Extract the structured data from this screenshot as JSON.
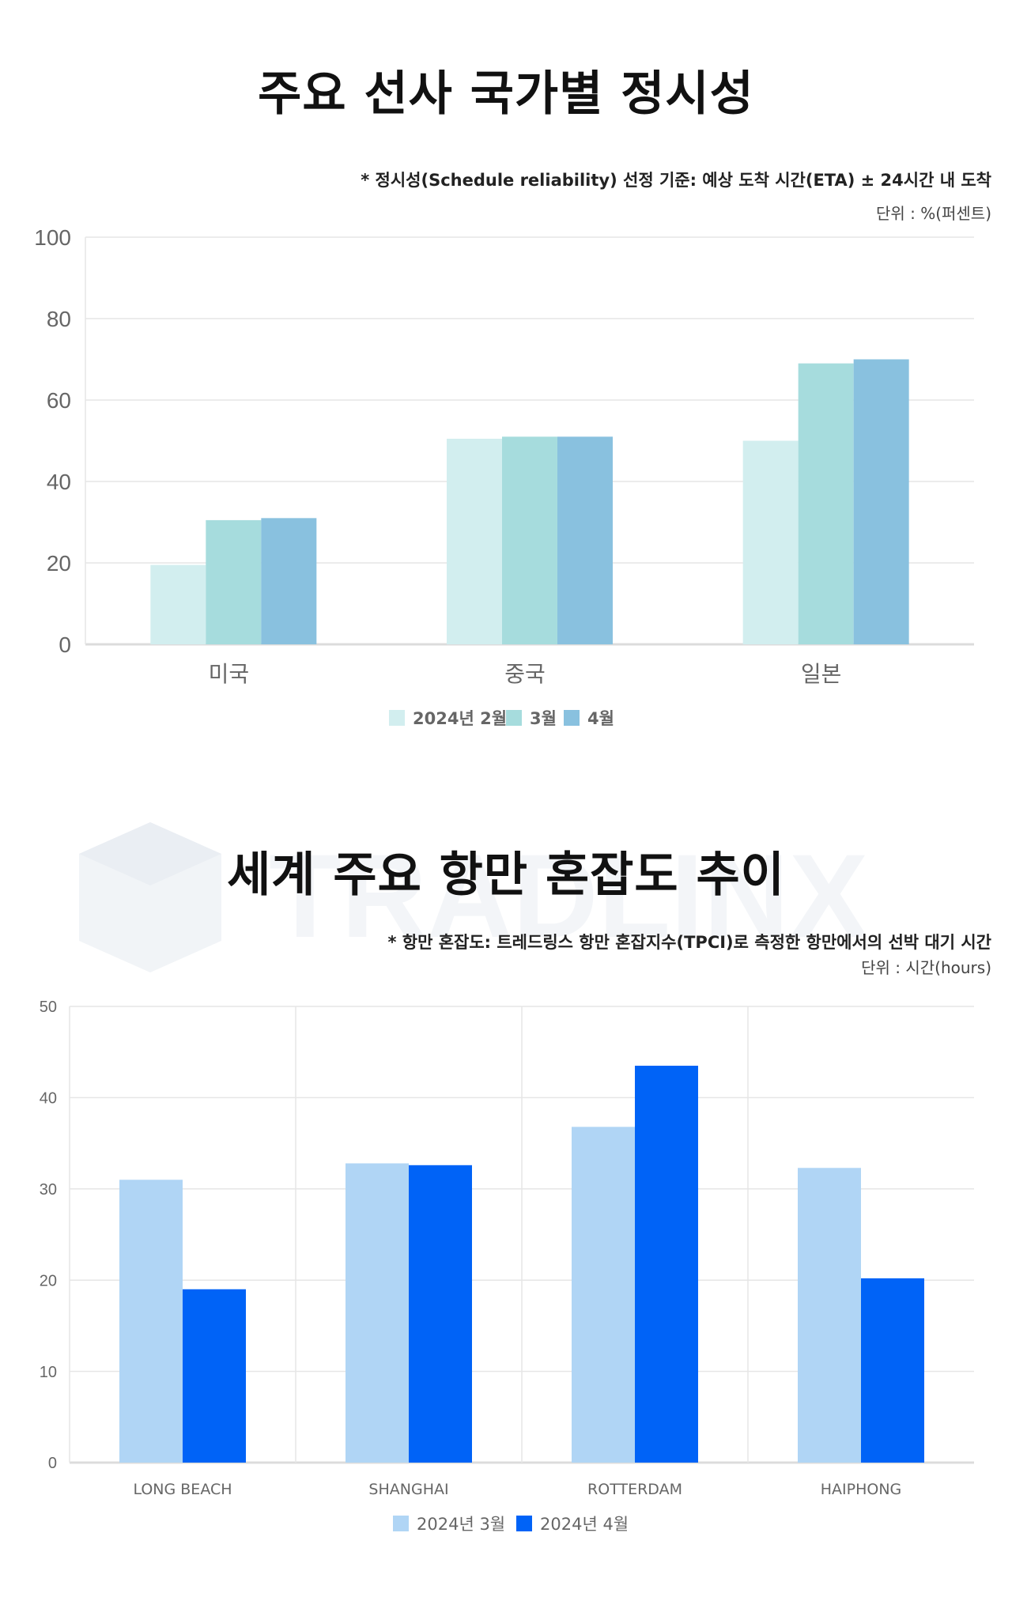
{
  "colors": {
    "c1_feb": "#d2eeef",
    "c1_mar": "#a6dcdd",
    "c1_apr": "#89c1df",
    "c2_mar": "#b0d5f5",
    "c2_apr": "#0063f7",
    "grid": "#e6e6e6",
    "axis_text": "#666666"
  },
  "chart1": {
    "title": "주요 선사 국가별 정시성",
    "note": "* 정시성(Schedule reliability) 선정 기준: 예상 도착 시간(ETA) ± 24시간 내 도착",
    "unit": "단위 : %(퍼센트)"
  },
  "chart2": {
    "title": "세계 주요 항만 혼잡도 추이",
    "note": "* 항만 혼잡도: 트레드링스 항만 혼잡지수(TPCI)로 측정한 항만에서의 선박 대기 시간",
    "unit": "단위 : 시간(hours)"
  },
  "watermark_text": "TRADLINX",
  "chart_data": [
    {
      "type": "bar",
      "title": "주요 선사 국가별 정시성",
      "categories": [
        "미국",
        "중국",
        "일본"
      ],
      "series": [
        {
          "name": "2024년 2월",
          "values": [
            19.5,
            50.5,
            50
          ],
          "color": "#d2eeef"
        },
        {
          "name": "3월",
          "values": [
            30.5,
            51,
            69
          ],
          "color": "#a6dcdd"
        },
        {
          "name": "4월",
          "values": [
            31,
            51,
            70
          ],
          "color": "#89c1df"
        }
      ],
      "yticks": [
        0,
        20,
        40,
        60,
        80,
        100
      ],
      "ylim": [
        0,
        100
      ],
      "grid": true,
      "legend_position": "bottom-center"
    },
    {
      "type": "bar",
      "title": "세계 주요 항만 혼잡도 추이",
      "categories": [
        "LONG BEACH",
        "SHANGHAI",
        "ROTTERDAM",
        "HAIPHONG"
      ],
      "series": [
        {
          "name": "2024년 3월",
          "values": [
            31,
            32.8,
            36.8,
            32.3
          ],
          "color": "#b0d5f5"
        },
        {
          "name": "2024년 4월",
          "values": [
            19,
            32.6,
            43.5,
            20.2
          ],
          "color": "#0063f7"
        }
      ],
      "yticks": [
        0,
        10,
        20,
        30,
        40,
        50
      ],
      "ylim": [
        0,
        50
      ],
      "grid": true,
      "legend_position": "bottom-center"
    }
  ]
}
